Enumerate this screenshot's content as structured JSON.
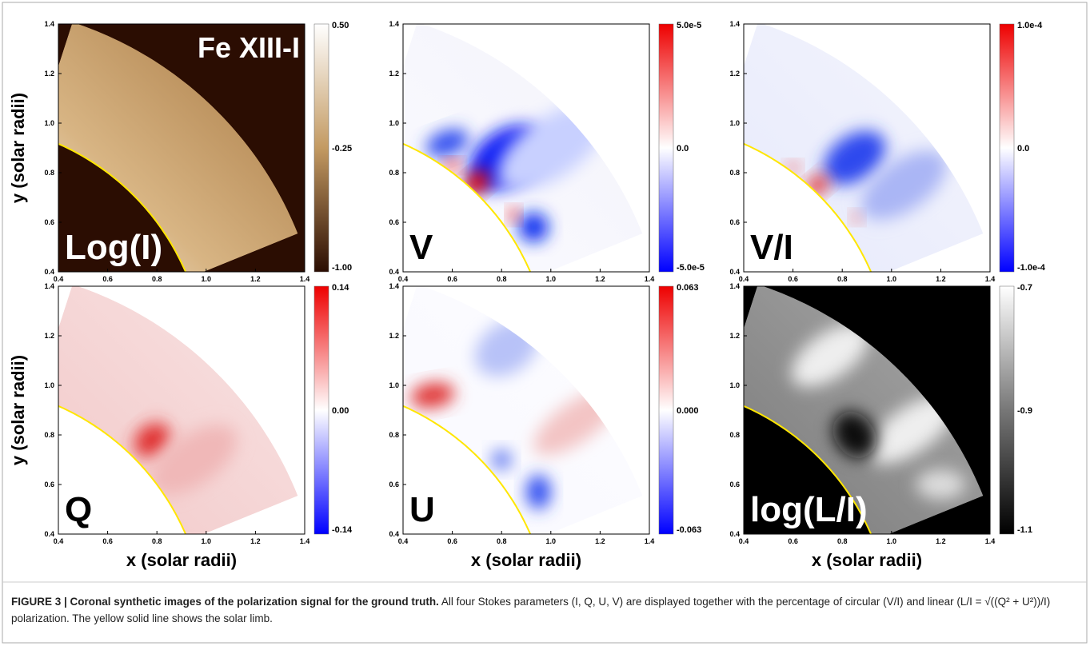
{
  "panels": [
    {
      "label": "Log(I)",
      "title": "Fe XIII-I",
      "colorbar": [
        "0.50",
        "-0.25",
        "-1.00"
      ]
    },
    {
      "label": "V",
      "colorbar": [
        "5.0e-5",
        "0.0",
        "-5.0e-5"
      ]
    },
    {
      "label": "V/I",
      "colorbar": [
        "1.0e-4",
        "0.0",
        "-1.0e-4"
      ]
    },
    {
      "label": "Q",
      "colorbar": [
        "0.14",
        "0.00",
        "-0.14"
      ]
    },
    {
      "label": "U",
      "colorbar": [
        "0.063",
        "0.000",
        "-0.063"
      ]
    },
    {
      "label": "log(L/I)",
      "colorbar": [
        "-0.7",
        "-0.9",
        "-1.1"
      ]
    }
  ],
  "ticks": [
    "0.4",
    "0.6",
    "0.8",
    "1.0",
    "1.2",
    "1.4"
  ],
  "y_label": "y (solar radii)",
  "x_label": "x (solar radii)",
  "caption": {
    "heading": "FIGURE 3 | Coronal synthetic images of the polarization signal for the ground truth.",
    "text": "All four Stokes parameters (I, Q, U, V) are displayed together with the percentage of circular (V/I) and linear (L/I = √((Q² + U²))/I) polarization. The yellow solid line shows the solar limb."
  }
}
